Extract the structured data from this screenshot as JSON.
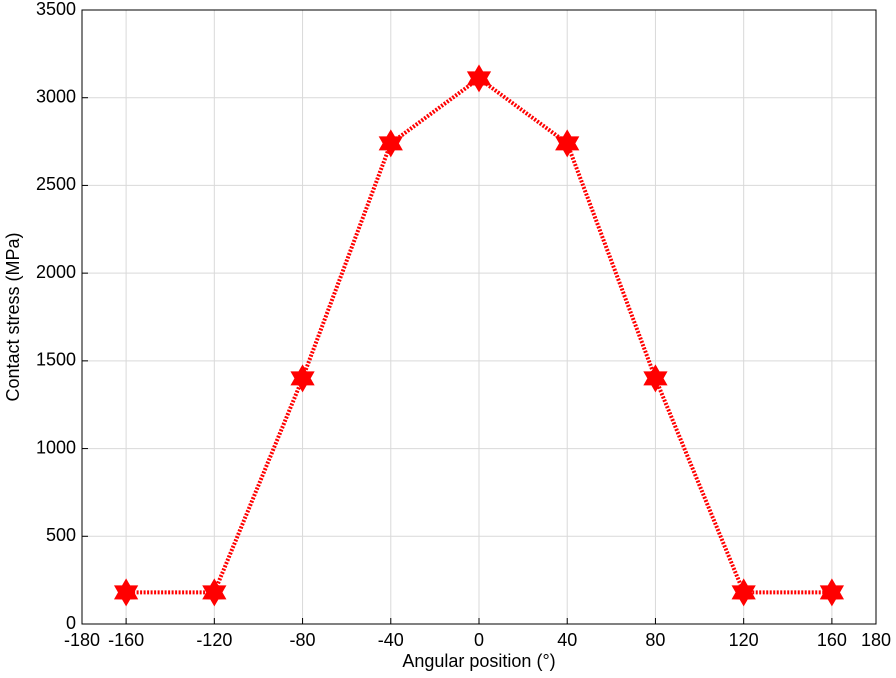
{
  "chart_data": {
    "type": "line",
    "x_label": "Angular position (°)",
    "y_label": "Contact stress (MPa)",
    "x": [
      -160,
      -120,
      -80,
      -40,
      0,
      40,
      80,
      120,
      160
    ],
    "series": [
      {
        "color": "#ff0000",
        "values": [
          180,
          180,
          1400,
          2740,
          3110,
          2740,
          1400,
          180,
          180
        ]
      }
    ],
    "xlim": [
      -180,
      180
    ],
    "xticks": [
      -180,
      -160,
      -120,
      -80,
      -40,
      0,
      40,
      80,
      120,
      160,
      180
    ],
    "ylim": [
      0,
      3500
    ],
    "yticks": [
      0,
      500,
      1000,
      1500,
      2000,
      2500,
      3000,
      3500
    ],
    "grid": true
  }
}
